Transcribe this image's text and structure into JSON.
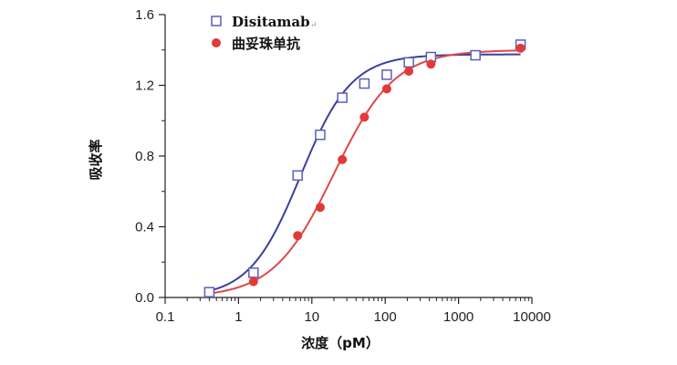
{
  "chart_data": {
    "type": "scatter",
    "xlabel": "浓度（pM）",
    "ylabel": "吸收率",
    "xscale": "log",
    "xlim": [
      0.1,
      10000
    ],
    "ylim": [
      0.0,
      1.6
    ],
    "x_ticks": [
      "0.1",
      "1",
      "10",
      "100",
      "1000",
      "10000"
    ],
    "y_ticks": [
      "0.0",
      "0.4",
      "0.8",
      "1.2",
      "1.6"
    ],
    "legend_position": "top-left",
    "grid": false,
    "series": [
      {
        "name": "Disitamab",
        "marker": "open-square",
        "color": "#5b5fb8",
        "curve_color": "#3b3fa0",
        "x": [
          0.4,
          1.6,
          6.4,
          13,
          26,
          52,
          105,
          210,
          420,
          1700,
          7000
        ],
        "y": [
          0.03,
          0.14,
          0.69,
          0.92,
          1.13,
          1.21,
          1.26,
          1.33,
          1.36,
          1.37,
          1.43
        ],
        "fit": {
          "bottom": 0.0,
          "top": 1.375,
          "ec50": 7.0,
          "hill": 1.25
        }
      },
      {
        "name": "曲妥珠单抗",
        "marker": "filled-circle",
        "color": "#e23a3a",
        "curve_color": "#e04848",
        "x": [
          1.6,
          6.4,
          13,
          26,
          52,
          105,
          210,
          420,
          7000
        ],
        "y": [
          0.09,
          0.35,
          0.51,
          0.78,
          1.02,
          1.18,
          1.28,
          1.32,
          1.41
        ],
        "fit": {
          "bottom": 0.0,
          "top": 1.4,
          "ec50": 20.0,
          "hill": 1.05
        }
      }
    ]
  }
}
